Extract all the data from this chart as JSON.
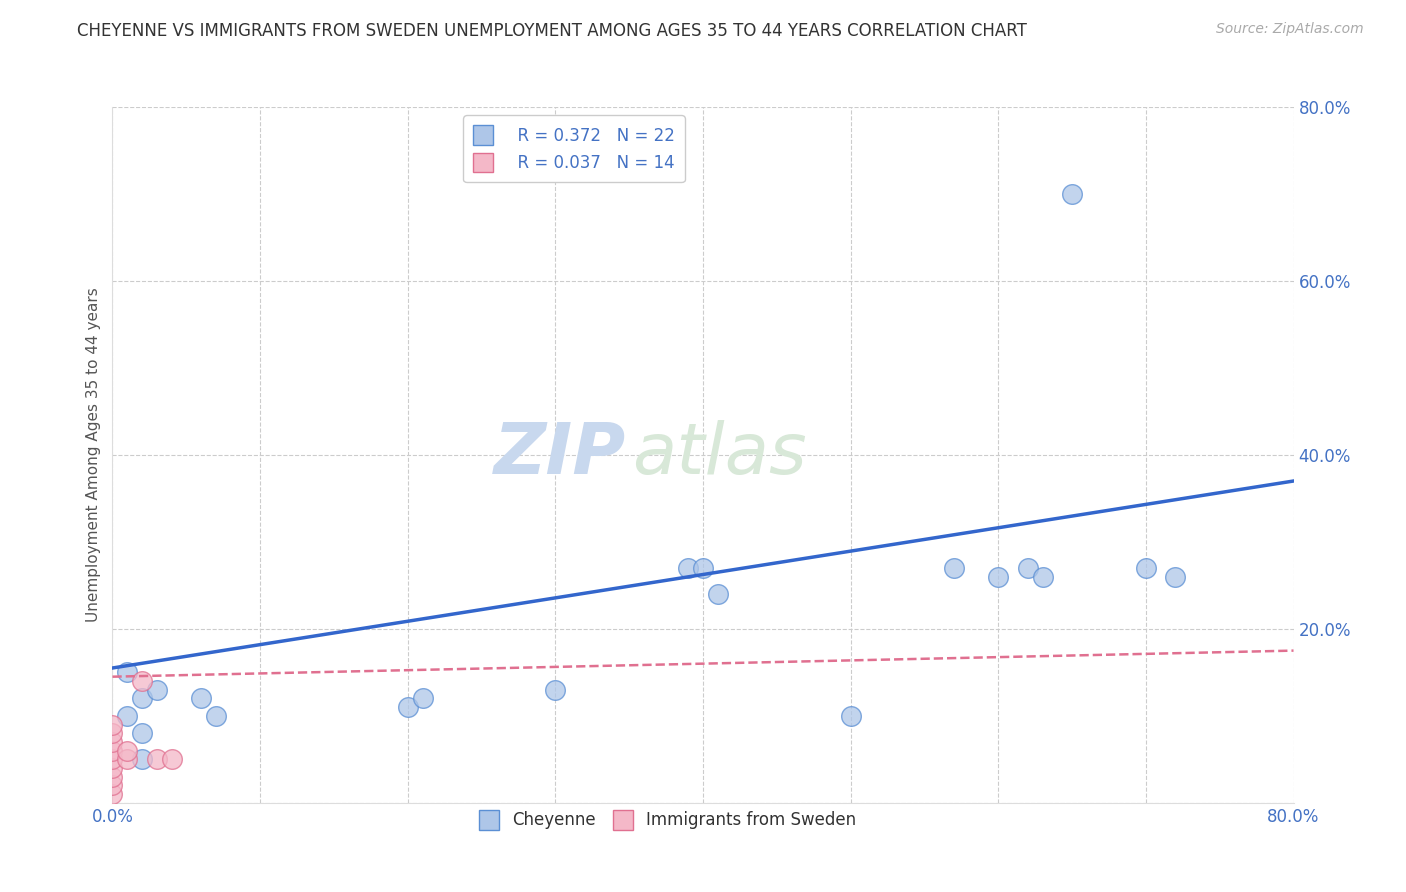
{
  "title": "CHEYENNE VS IMMIGRANTS FROM SWEDEN UNEMPLOYMENT AMONG AGES 35 TO 44 YEARS CORRELATION CHART",
  "source": "Source: ZipAtlas.com",
  "ylabel": "Unemployment Among Ages 35 to 44 years",
  "xlim": [
    0.0,
    0.8
  ],
  "ylim": [
    0.0,
    0.8
  ],
  "xticks": [
    0.0,
    0.1,
    0.2,
    0.3,
    0.4,
    0.5,
    0.6,
    0.7,
    0.8
  ],
  "yticks": [
    0.0,
    0.2,
    0.4,
    0.6,
    0.8
  ],
  "xtick_labels": [
    "0.0%",
    "",
    "",
    "",
    "",
    "",
    "",
    "",
    "80.0%"
  ],
  "ytick_labels": [
    "",
    "20.0%",
    "40.0%",
    "60.0%",
    "80.0%"
  ],
  "cheyenne_R": 0.372,
  "cheyenne_N": 22,
  "sweden_R": 0.037,
  "sweden_N": 14,
  "cheyenne_color": "#aec6e8",
  "cheyenne_edge_color": "#5b8fd4",
  "sweden_color": "#f4b8c8",
  "sweden_edge_color": "#e07090",
  "cheyenne_line_color": "#3366cc",
  "sweden_line_color": "#e07090",
  "background_color": "#ffffff",
  "grid_color": "#cccccc",
  "watermark_zip": "ZIP",
  "watermark_atlas": "atlas",
  "cheyenne_x": [
    0.01,
    0.01,
    0.02,
    0.02,
    0.02,
    0.03,
    0.06,
    0.07,
    0.2,
    0.21,
    0.3,
    0.39,
    0.4,
    0.41,
    0.5,
    0.57,
    0.6,
    0.62,
    0.63,
    0.65,
    0.7,
    0.72
  ],
  "cheyenne_y": [
    0.15,
    0.1,
    0.05,
    0.08,
    0.12,
    0.13,
    0.12,
    0.1,
    0.11,
    0.12,
    0.13,
    0.27,
    0.27,
    0.24,
    0.1,
    0.27,
    0.26,
    0.27,
    0.26,
    0.7,
    0.27,
    0.26
  ],
  "sweden_x": [
    0.0,
    0.0,
    0.0,
    0.0,
    0.0,
    0.0,
    0.0,
    0.0,
    0.0,
    0.01,
    0.01,
    0.02,
    0.03,
    0.04
  ],
  "sweden_y": [
    0.01,
    0.02,
    0.03,
    0.04,
    0.05,
    0.06,
    0.07,
    0.08,
    0.09,
    0.05,
    0.06,
    0.14,
    0.05,
    0.05
  ],
  "cheyenne_trendline_x": [
    0.0,
    0.8
  ],
  "cheyenne_trendline_y": [
    0.155,
    0.37
  ],
  "sweden_trendline_x": [
    0.0,
    0.8
  ],
  "sweden_trendline_y": [
    0.145,
    0.175
  ],
  "title_fontsize": 12,
  "source_fontsize": 10,
  "legend_fontsize": 12,
  "axis_label_fontsize": 11,
  "tick_fontsize": 12,
  "watermark_zip_fontsize": 52,
  "watermark_atlas_fontsize": 52,
  "marker_size": 200
}
